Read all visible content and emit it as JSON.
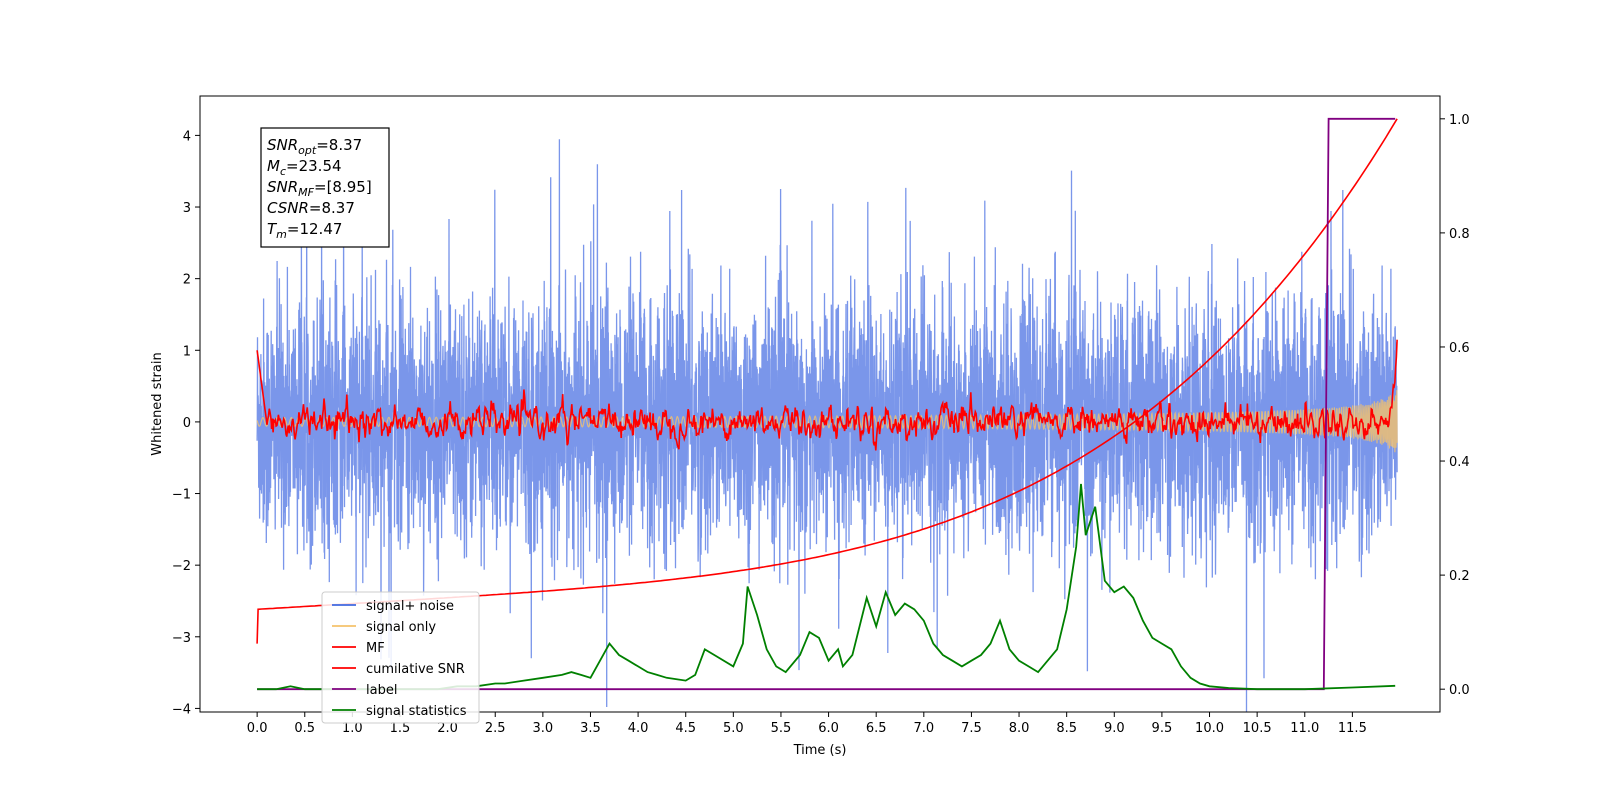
{
  "chart_data": {
    "type": "line",
    "xlabel": "Time (s)",
    "ylabel": "Whitened strain",
    "xlim": [
      -0.6,
      12.42
    ],
    "ylim": [
      -4.05,
      4.55
    ],
    "y2lim": [
      -0.04,
      1.04
    ],
    "x_ticks": [
      "0.0",
      "0.5",
      "1.0",
      "1.5",
      "2.0",
      "2.5",
      "3.0",
      "3.5",
      "4.0",
      "4.5",
      "5.0",
      "5.5",
      "6.0",
      "6.5",
      "7.0",
      "7.5",
      "8.0",
      "8.5",
      "9.0",
      "9.5",
      "10.0",
      "10.5",
      "11.0",
      "11.5"
    ],
    "y_ticks": [
      4,
      3,
      2,
      1,
      0,
      -1,
      -2,
      -3,
      -4
    ],
    "y2_ticks": [
      "1.0",
      "0.8",
      "0.6",
      "0.4",
      "0.2",
      "0.0"
    ],
    "info_box": [
      {
        "sym": "SNR",
        "sub": "opt",
        "val": "=8.37"
      },
      {
        "sym": "M",
        "sub": "c",
        "val": "=23.54"
      },
      {
        "sym": "SNR",
        "sub": "MF",
        "val": "=[8.95]"
      },
      {
        "sym": "CSNR",
        "sub": "",
        "val": "=8.37"
      },
      {
        "sym": "T",
        "sub": "m",
        "val": "=12.47"
      }
    ],
    "legend": [
      {
        "label": "signal+ noise",
        "color": "#4169e1"
      },
      {
        "label": "signal only",
        "color": "#f5c26b"
      },
      {
        "label": "MF",
        "color": "#ff0000"
      },
      {
        "label": "cumilative SNR",
        "color": "#ff0000"
      },
      {
        "label": "label",
        "color": "#800080"
      },
      {
        "label": "signal statistics",
        "color": "#008000"
      }
    ],
    "series": [
      {
        "name": "label",
        "axis": "right",
        "color": "#800080",
        "x": [
          0.0,
          11.2,
          11.2,
          11.25,
          11.25,
          11.95
        ],
        "y": [
          0.0,
          0.0,
          0.0,
          1.0,
          1.0,
          1.0
        ]
      },
      {
        "name": "signal statistics",
        "axis": "right",
        "color": "#008000",
        "x": [
          0.0,
          0.2,
          0.35,
          0.5,
          0.7,
          0.9,
          1.1,
          1.3,
          1.5,
          1.7,
          1.9,
          2.1,
          2.3,
          2.5,
          2.6,
          2.8,
          3.0,
          3.2,
          3.3,
          3.4,
          3.5,
          3.6,
          3.7,
          3.8,
          3.9,
          4.0,
          4.1,
          4.2,
          4.3,
          4.5,
          4.6,
          4.7,
          4.8,
          5.0,
          5.1,
          5.15,
          5.25,
          5.35,
          5.45,
          5.55,
          5.7,
          5.8,
          5.9,
          6.0,
          6.1,
          6.15,
          6.25,
          6.4,
          6.5,
          6.6,
          6.7,
          6.8,
          6.9,
          7.0,
          7.1,
          7.2,
          7.3,
          7.4,
          7.5,
          7.6,
          7.7,
          7.8,
          7.9,
          8.0,
          8.1,
          8.2,
          8.3,
          8.4,
          8.5,
          8.6,
          8.65,
          8.7,
          8.8,
          8.9,
          9.0,
          9.1,
          9.2,
          9.3,
          9.4,
          9.5,
          9.6,
          9.7,
          9.8,
          9.9,
          10.0,
          10.2,
          10.5,
          11.0,
          11.5,
          11.95
        ],
        "y": [
          0.0,
          0.0,
          0.005,
          0.0,
          0.0,
          0.0,
          0.0,
          0.0,
          0.0,
          0.0,
          0.0,
          0.005,
          0.005,
          0.01,
          0.01,
          0.015,
          0.02,
          0.025,
          0.03,
          0.025,
          0.02,
          0.05,
          0.08,
          0.06,
          0.05,
          0.04,
          0.03,
          0.025,
          0.02,
          0.015,
          0.025,
          0.07,
          0.06,
          0.04,
          0.08,
          0.18,
          0.13,
          0.07,
          0.04,
          0.03,
          0.06,
          0.1,
          0.09,
          0.05,
          0.07,
          0.04,
          0.06,
          0.16,
          0.11,
          0.17,
          0.13,
          0.15,
          0.14,
          0.12,
          0.08,
          0.06,
          0.05,
          0.04,
          0.05,
          0.06,
          0.08,
          0.12,
          0.07,
          0.05,
          0.04,
          0.03,
          0.05,
          0.07,
          0.14,
          0.25,
          0.36,
          0.27,
          0.32,
          0.19,
          0.17,
          0.18,
          0.16,
          0.12,
          0.09,
          0.08,
          0.07,
          0.04,
          0.02,
          0.01,
          0.005,
          0.002,
          0.0,
          0.0,
          0.003,
          0.006
        ]
      }
    ],
    "cumulative_snr": {
      "name": "cumilative SNR",
      "axis": "right",
      "color": "#ff0000",
      "x_start": 0.0,
      "x_end": 11.97,
      "y_start": 0.08,
      "y_floor": 0.14,
      "y_end": 1.0
    },
    "noise": {
      "name": "signal+ noise",
      "axis": "left",
      "color": "#4169e1",
      "x_start": 0.0,
      "x_end": 11.97
    },
    "signal": {
      "name": "signal only",
      "axis": "left",
      "color": "#f5c26b",
      "x_start": 0.0,
      "x_end": 11.97
    },
    "mf": {
      "name": "MF",
      "axis": "left",
      "color": "#ff0000",
      "x_start": 0.0,
      "x_end": 11.97
    }
  }
}
